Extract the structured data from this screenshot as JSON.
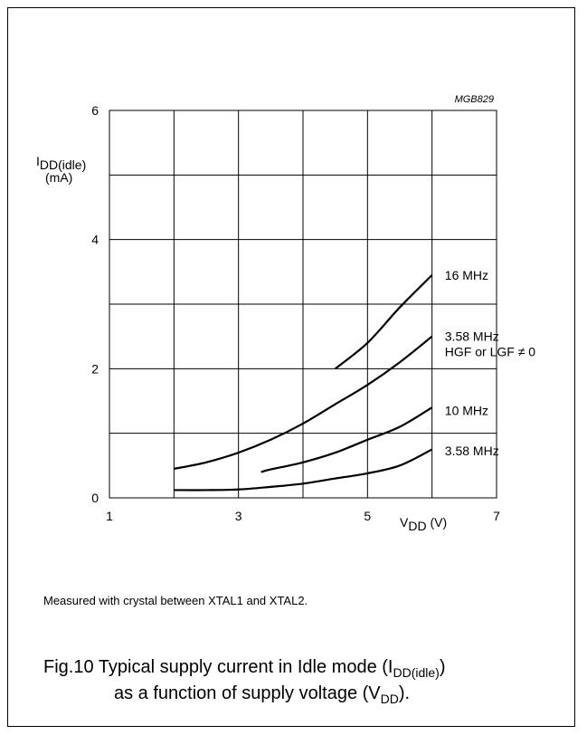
{
  "chart_data": {
    "type": "line",
    "code_label": "MGB829",
    "xlim": [
      1,
      7
    ],
    "ylim": [
      0,
      6
    ],
    "x_ticks": [
      "1",
      "3",
      "5",
      "7"
    ],
    "y_ticks": [
      "0",
      "2",
      "4",
      "6"
    ],
    "xlabel": {
      "main": "V",
      "sub": "DD",
      "unit": " (V)"
    },
    "ylabel": {
      "main": "I",
      "sub": "DD(idle)",
      "unit": "(mA)"
    },
    "grid": true,
    "series": [
      {
        "name": "16 MHz",
        "points": [
          [
            4.5,
            2.0
          ],
          [
            5.0,
            2.4
          ],
          [
            5.5,
            2.95
          ],
          [
            6.0,
            3.45
          ]
        ]
      },
      {
        "name": "3.58 MHz HGF or LGF ≠ 0",
        "points": [
          [
            2.0,
            0.45
          ],
          [
            2.5,
            0.55
          ],
          [
            3.0,
            0.7
          ],
          [
            3.5,
            0.9
          ],
          [
            4.0,
            1.15
          ],
          [
            4.5,
            1.45
          ],
          [
            5.0,
            1.75
          ],
          [
            5.5,
            2.1
          ],
          [
            6.0,
            2.5
          ]
        ]
      },
      {
        "name": "10 MHz",
        "points": [
          [
            3.35,
            0.4
          ],
          [
            3.5,
            0.44
          ],
          [
            4.0,
            0.55
          ],
          [
            4.5,
            0.7
          ],
          [
            5.0,
            0.9
          ],
          [
            5.5,
            1.1
          ],
          [
            6.0,
            1.4
          ]
        ]
      },
      {
        "name": "3.58 MHz",
        "points": [
          [
            2.0,
            0.12
          ],
          [
            2.5,
            0.12
          ],
          [
            3.0,
            0.13
          ],
          [
            3.5,
            0.17
          ],
          [
            4.0,
            0.22
          ],
          [
            4.5,
            0.3
          ],
          [
            5.0,
            0.38
          ],
          [
            5.5,
            0.5
          ],
          [
            6.0,
            0.75
          ]
        ]
      }
    ],
    "labels": [
      {
        "lines": [
          "16 MHz"
        ],
        "x": 6.1,
        "y": 3.45
      },
      {
        "lines": [
          "3.58 MHz",
          "HGF or LGF ≠  0"
        ],
        "x": 6.1,
        "y": 2.5
      },
      {
        "lines": [
          "10 MHz"
        ],
        "x": 6.1,
        "y": 1.35
      },
      {
        "lines": [
          "3.58 MHz"
        ],
        "x": 6.1,
        "y": 0.73
      }
    ]
  },
  "note": "Measured with crystal between XTAL1 and XTAL2.",
  "caption": {
    "prefix": "Fig.10  Typical supply current in Idle mode (I",
    "sub1": "DD(idle)",
    "suffix1": ")",
    "line2_prefix": "as a function of supply voltage (V",
    "sub2": "DD",
    "suffix2": ")."
  }
}
